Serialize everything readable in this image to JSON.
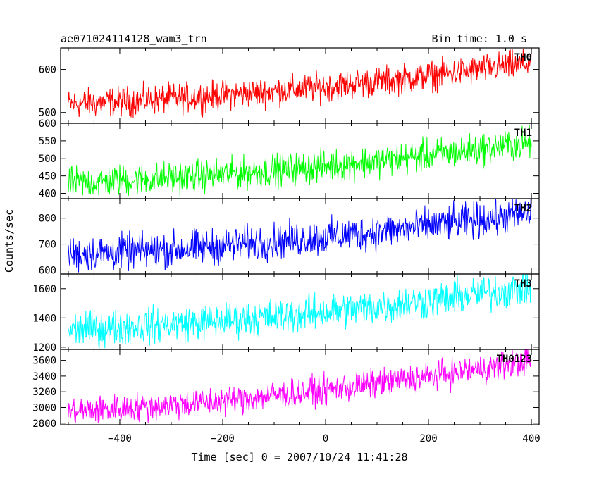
{
  "header": {
    "title": "ae071024114128_wam3_trn",
    "bin_time": "Bin time: 1.0 s"
  },
  "axes": {
    "xlabel": "Time [sec] 0 = 2007/10/24 11:41:28",
    "ylabel": "Counts/sec"
  },
  "chart_data": {
    "type": "line",
    "xlim": [
      -515,
      415
    ],
    "x_ticks": [
      -400,
      -200,
      0,
      200,
      400
    ],
    "x_tick_labels": [
      "−400",
      "−200",
      "0",
      "200",
      "400"
    ],
    "x_range": [
      -500,
      400
    ],
    "bin_time": 1.0,
    "grid": false,
    "panels": [
      {
        "name": "TH0",
        "color": "#ff0000",
        "ylim": [
          475,
          650
        ],
        "y_ticks": [
          500,
          600
        ],
        "y_tick_labels": [
          "500",
          "600"
        ],
        "start": 520,
        "end": 615,
        "noise": 45
      },
      {
        "name": "TH1",
        "color": "#00ff00",
        "ylim": [
          385,
          600
        ],
        "y_ticks": [
          400,
          450,
          500,
          550,
          600
        ],
        "y_tick_labels": [
          "400",
          "450",
          "500",
          "550",
          "600"
        ],
        "start": 430,
        "end": 545,
        "noise": 60
      },
      {
        "name": "TH2",
        "color": "#0000ff",
        "ylim": [
          585,
          875
        ],
        "y_ticks": [
          600,
          700,
          800
        ],
        "y_tick_labels": [
          "600",
          "700",
          "800"
        ],
        "start": 660,
        "end": 820,
        "noise": 90
      },
      {
        "name": "TH3",
        "color": "#00ffff",
        "ylim": [
          1185,
          1700
        ],
        "y_ticks": [
          1200,
          1400,
          1600
        ],
        "y_tick_labels": [
          "1200",
          "1400",
          "1600"
        ],
        "start": 1320,
        "end": 1610,
        "noise": 160
      },
      {
        "name": "TH0123",
        "color": "#ff00ff",
        "ylim": [
          2780,
          3740
        ],
        "y_ticks": [
          2800,
          3000,
          3200,
          3400,
          3600
        ],
        "y_tick_labels": [
          "2800",
          "3000",
          "3200",
          "3400",
          "3600"
        ],
        "start": 2950,
        "end": 3600,
        "noise": 240
      }
    ]
  }
}
